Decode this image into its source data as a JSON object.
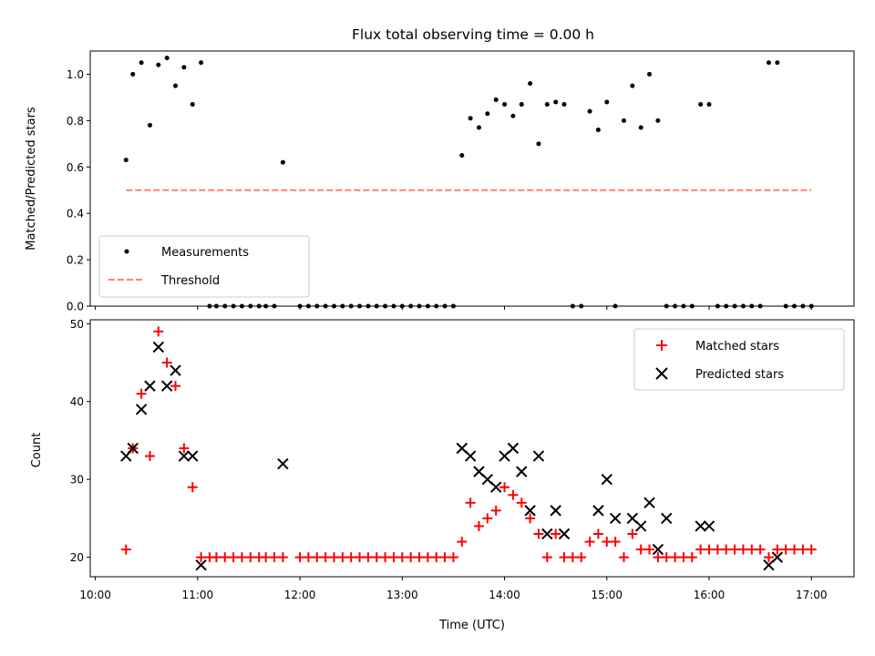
{
  "chart_data": [
    {
      "type": "scatter",
      "title": "Flux total observing time = 0.00 h",
      "xlabel": "",
      "ylabel": "Matched/Predicted stars",
      "xlim": [
        "10:00",
        "17:00"
      ],
      "ylim": [
        0.0,
        1.1
      ],
      "yticks": [
        "0.0",
        "0.2",
        "0.4",
        "0.6",
        "0.8",
        "1.0"
      ],
      "xtick_labels_shown": false,
      "grid": false,
      "legend": {
        "placement": "lower-left",
        "entries": [
          "Measurements",
          "Threshold"
        ]
      },
      "series": [
        {
          "name": "Measurements",
          "marker": "dot",
          "color": "#000000",
          "points": [
            [
              "10:18",
              0.63
            ],
            [
              "10:22",
              1.0
            ],
            [
              "10:27",
              1.05
            ],
            [
              "10:32",
              0.78
            ],
            [
              "10:37",
              1.04
            ],
            [
              "10:42",
              1.07
            ],
            [
              "10:47",
              0.95
            ],
            [
              "10:52",
              1.03
            ],
            [
              "10:57",
              0.87
            ],
            [
              "11:02",
              1.05
            ],
            [
              "11:07",
              0.0
            ],
            [
              "11:11",
              0.0
            ],
            [
              "11:16",
              0.0
            ],
            [
              "11:21",
              0.0
            ],
            [
              "11:26",
              0.0
            ],
            [
              "11:31",
              0.0
            ],
            [
              "11:36",
              0.0
            ],
            [
              "11:40",
              0.0
            ],
            [
              "11:45",
              0.0
            ],
            [
              "11:50",
              0.62
            ],
            [
              "12:00",
              0.0
            ],
            [
              "12:05",
              0.0
            ],
            [
              "12:10",
              0.0
            ],
            [
              "12:15",
              0.0
            ],
            [
              "12:20",
              0.0
            ],
            [
              "12:25",
              0.0
            ],
            [
              "12:30",
              0.0
            ],
            [
              "12:35",
              0.0
            ],
            [
              "12:40",
              0.0
            ],
            [
              "12:45",
              0.0
            ],
            [
              "12:50",
              0.0
            ],
            [
              "12:55",
              0.0
            ],
            [
              "13:00",
              0.0
            ],
            [
              "13:05",
              0.0
            ],
            [
              "13:10",
              0.0
            ],
            [
              "13:15",
              0.0
            ],
            [
              "13:20",
              0.0
            ],
            [
              "13:25",
              0.0
            ],
            [
              "13:30",
              0.0
            ],
            [
              "13:35",
              0.65
            ],
            [
              "13:40",
              0.81
            ],
            [
              "13:45",
              0.77
            ],
            [
              "13:50",
              0.83
            ],
            [
              "13:55",
              0.89
            ],
            [
              "14:00",
              0.87
            ],
            [
              "14:05",
              0.82
            ],
            [
              "14:10",
              0.87
            ],
            [
              "14:15",
              0.96
            ],
            [
              "14:20",
              0.7
            ],
            [
              "14:25",
              0.87
            ],
            [
              "14:30",
              0.88
            ],
            [
              "14:35",
              0.87
            ],
            [
              "14:40",
              0.0
            ],
            [
              "14:45",
              0.0
            ],
            [
              "14:50",
              0.84
            ],
            [
              "14:55",
              0.76
            ],
            [
              "15:00",
              0.88
            ],
            [
              "15:05",
              0.0
            ],
            [
              "15:10",
              0.8
            ],
            [
              "15:15",
              0.95
            ],
            [
              "15:20",
              0.77
            ],
            [
              "15:25",
              1.0
            ],
            [
              "15:30",
              0.8
            ],
            [
              "15:35",
              0.0
            ],
            [
              "15:40",
              0.0
            ],
            [
              "15:45",
              0.0
            ],
            [
              "15:50",
              0.0
            ],
            [
              "15:55",
              0.87
            ],
            [
              "16:00",
              0.87
            ],
            [
              "16:05",
              0.0
            ],
            [
              "16:10",
              0.0
            ],
            [
              "16:15",
              0.0
            ],
            [
              "16:20",
              0.0
            ],
            [
              "16:25",
              0.0
            ],
            [
              "16:30",
              0.0
            ],
            [
              "16:35",
              1.05
            ],
            [
              "16:40",
              1.05
            ],
            [
              "16:45",
              0.0
            ],
            [
              "16:50",
              0.0
            ],
            [
              "16:55",
              0.0
            ],
            [
              "17:00",
              0.0
            ]
          ]
        },
        {
          "name": "Threshold",
          "style": "dashed",
          "color": "#ff7f7f",
          "points": [
            [
              "10:18",
              0.5
            ],
            [
              "17:00",
              0.5
            ]
          ]
        }
      ]
    },
    {
      "type": "scatter",
      "title": "",
      "xlabel": "Time (UTC)",
      "ylabel": "Count",
      "xlim": [
        "10:00",
        "17:00"
      ],
      "ylim": [
        17.5,
        50.5
      ],
      "xticks": [
        "10:00",
        "11:00",
        "12:00",
        "13:00",
        "14:00",
        "15:00",
        "16:00",
        "17:00"
      ],
      "yticks": [
        "20",
        "30",
        "40",
        "50"
      ],
      "grid": false,
      "legend": {
        "placement": "top-right",
        "entries": [
          "Matched stars",
          "Predicted stars"
        ]
      },
      "series": [
        {
          "name": "Matched stars",
          "marker": "plus",
          "color": "#ff0000",
          "points": [
            [
              "10:18",
              21
            ],
            [
              "10:22",
              34
            ],
            [
              "10:27",
              41
            ],
            [
              "10:32",
              33
            ],
            [
              "10:37",
              49
            ],
            [
              "10:42",
              45
            ],
            [
              "10:47",
              42
            ],
            [
              "10:52",
              34
            ],
            [
              "10:57",
              29
            ],
            [
              "11:02",
              20
            ],
            [
              "11:07",
              20
            ],
            [
              "11:11",
              20
            ],
            [
              "11:16",
              20
            ],
            [
              "11:21",
              20
            ],
            [
              "11:26",
              20
            ],
            [
              "11:31",
              20
            ],
            [
              "11:36",
              20
            ],
            [
              "11:40",
              20
            ],
            [
              "11:45",
              20
            ],
            [
              "11:50",
              20
            ],
            [
              "12:00",
              20
            ],
            [
              "12:05",
              20
            ],
            [
              "12:10",
              20
            ],
            [
              "12:15",
              20
            ],
            [
              "12:20",
              20
            ],
            [
              "12:25",
              20
            ],
            [
              "12:30",
              20
            ],
            [
              "12:35",
              20
            ],
            [
              "12:40",
              20
            ],
            [
              "12:45",
              20
            ],
            [
              "12:50",
              20
            ],
            [
              "12:55",
              20
            ],
            [
              "13:00",
              20
            ],
            [
              "13:05",
              20
            ],
            [
              "13:10",
              20
            ],
            [
              "13:15",
              20
            ],
            [
              "13:20",
              20
            ],
            [
              "13:25",
              20
            ],
            [
              "13:30",
              20
            ],
            [
              "13:35",
              22
            ],
            [
              "13:40",
              27
            ],
            [
              "13:45",
              24
            ],
            [
              "13:50",
              25
            ],
            [
              "13:55",
              26
            ],
            [
              "14:00",
              29
            ],
            [
              "14:05",
              28
            ],
            [
              "14:10",
              27
            ],
            [
              "14:15",
              25
            ],
            [
              "14:20",
              23
            ],
            [
              "14:25",
              20
            ],
            [
              "14:30",
              23
            ],
            [
              "14:35",
              20
            ],
            [
              "14:40",
              20
            ],
            [
              "14:45",
              20
            ],
            [
              "14:50",
              22
            ],
            [
              "14:55",
              23
            ],
            [
              "15:00",
              22
            ],
            [
              "15:05",
              22
            ],
            [
              "15:10",
              20
            ],
            [
              "15:15",
              23
            ],
            [
              "15:20",
              21
            ],
            [
              "15:25",
              21
            ],
            [
              "15:30",
              20
            ],
            [
              "15:35",
              20
            ],
            [
              "15:40",
              20
            ],
            [
              "15:45",
              20
            ],
            [
              "15:50",
              20
            ],
            [
              "15:55",
              21
            ],
            [
              "16:00",
              21
            ],
            [
              "16:05",
              21
            ],
            [
              "16:10",
              21
            ],
            [
              "16:15",
              21
            ],
            [
              "16:20",
              21
            ],
            [
              "16:25",
              21
            ],
            [
              "16:30",
              21
            ],
            [
              "16:35",
              20
            ],
            [
              "16:40",
              21
            ],
            [
              "16:45",
              21
            ],
            [
              "16:50",
              21
            ],
            [
              "16:55",
              21
            ],
            [
              "17:00",
              21
            ]
          ]
        },
        {
          "name": "Predicted stars",
          "marker": "x",
          "color": "#000000",
          "points": [
            [
              "10:18",
              33
            ],
            [
              "10:22",
              34
            ],
            [
              "10:27",
              39
            ],
            [
              "10:32",
              42
            ],
            [
              "10:37",
              47
            ],
            [
              "10:42",
              42
            ],
            [
              "10:47",
              44
            ],
            [
              "10:52",
              33
            ],
            [
              "10:57",
              33
            ],
            [
              "11:02",
              19
            ],
            [
              "11:50",
              32
            ],
            [
              "13:35",
              34
            ],
            [
              "13:40",
              33
            ],
            [
              "13:45",
              31
            ],
            [
              "13:50",
              30
            ],
            [
              "13:55",
              29
            ],
            [
              "14:00",
              33
            ],
            [
              "14:05",
              34
            ],
            [
              "14:10",
              31
            ],
            [
              "14:15",
              26
            ],
            [
              "14:20",
              33
            ],
            [
              "14:25",
              23
            ],
            [
              "14:30",
              26
            ],
            [
              "14:35",
              23
            ],
            [
              "14:55",
              26
            ],
            [
              "15:00",
              30
            ],
            [
              "15:05",
              25
            ],
            [
              "15:15",
              25
            ],
            [
              "15:20",
              24
            ],
            [
              "15:25",
              27
            ],
            [
              "15:30",
              21
            ],
            [
              "15:35",
              25
            ],
            [
              "15:55",
              24
            ],
            [
              "16:00",
              24
            ],
            [
              "16:35",
              19
            ],
            [
              "16:40",
              20
            ]
          ]
        }
      ]
    }
  ]
}
